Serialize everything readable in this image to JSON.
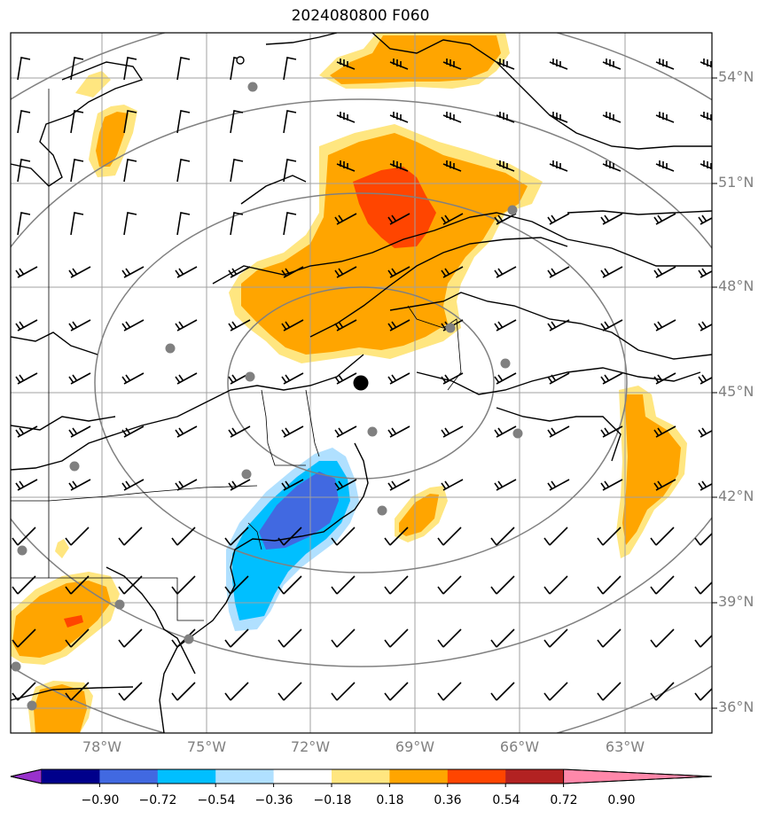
{
  "title": "2024080800 F060",
  "lat_labels": [
    "54°N",
    "51°N",
    "48°N",
    "45°N",
    "42°N",
    "39°N",
    "36°N"
  ],
  "lon_labels": [
    "78°W",
    "75°W",
    "72°W",
    "69°W",
    "66°W",
    "63°W"
  ],
  "colorbar": {
    "ticks": [
      "−0.90",
      "−0.72",
      "−0.54",
      "−0.36",
      "−0.18",
      "0.18",
      "0.36",
      "0.54",
      "0.72",
      "0.90"
    ],
    "colors": [
      "#9932cc",
      "#00008b",
      "#4169e1",
      "#00bfff",
      "#b0e0ff",
      "#ffffff",
      "#ffe680",
      "#ffa500",
      "#ff4500",
      "#b22222",
      "#ff88aa"
    ]
  }
}
